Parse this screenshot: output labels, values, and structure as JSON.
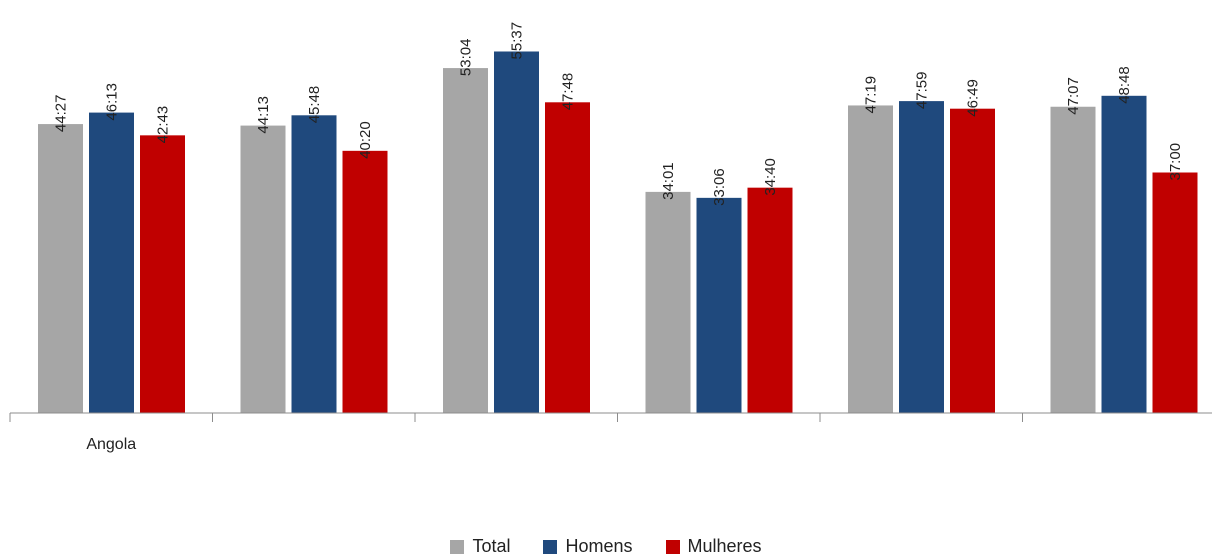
{
  "chart_data": {
    "type": "bar",
    "categories": [
      "Angola",
      "",
      "",
      "",
      "",
      ""
    ],
    "series": [
      {
        "name": "Total",
        "color": "#a6a6a6",
        "values": [
          44.45,
          44.2167,
          53.0667,
          34.0167,
          47.3167,
          47.1167
        ],
        "labels": [
          "44:27",
          "44:13",
          "53:04",
          "34:01",
          "47:19",
          "47:07"
        ]
      },
      {
        "name": "Homens",
        "color": "#1f497d",
        "values": [
          46.2167,
          45.8,
          55.6167,
          33.1,
          47.9833,
          48.8
        ],
        "labels": [
          "46:13",
          "45:48",
          "55:37",
          "33:06",
          "47:59",
          "48:48"
        ]
      },
      {
        "name": "Mulheres",
        "color": "#c00000",
        "values": [
          42.7167,
          40.3333,
          47.8,
          34.6667,
          46.8167,
          37.0
        ],
        "labels": [
          "42:43",
          "40:20",
          "47:48",
          "34:40",
          "46:49",
          "37:00"
        ]
      }
    ],
    "ylim": [
      0,
      60
    ],
    "grid": false,
    "legend_position": "bottom"
  }
}
